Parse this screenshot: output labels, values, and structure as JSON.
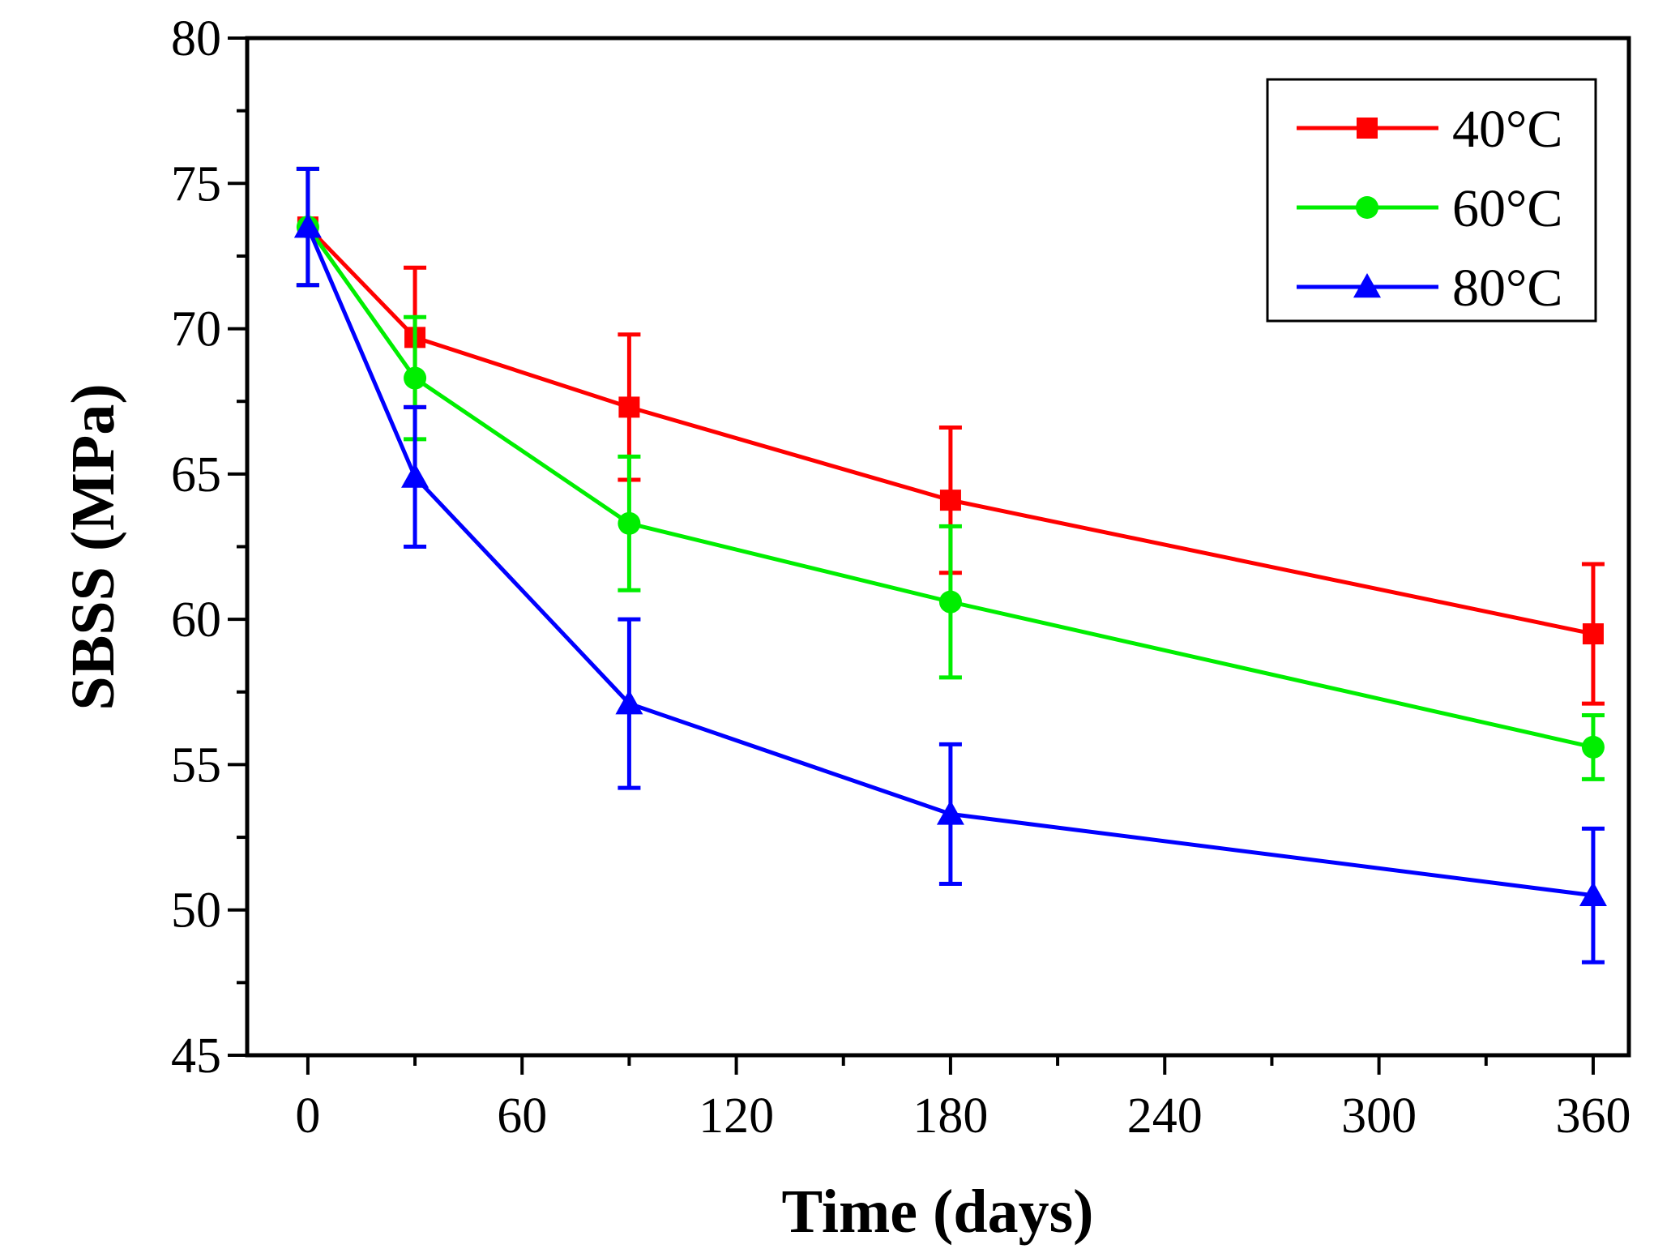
{
  "chart_data": {
    "type": "line",
    "xlabel": "Time (days)",
    "ylabel": "SBSS (MPa)",
    "xlim": [
      -17,
      370
    ],
    "ylim": [
      45,
      80
    ],
    "x_ticks": [
      0,
      60,
      120,
      180,
      240,
      300,
      360
    ],
    "y_ticks": [
      45,
      50,
      55,
      60,
      65,
      70,
      75,
      80
    ],
    "x_minor_step": 30,
    "y_minor_step": 2.5,
    "grid": false,
    "legend_position": "top-right",
    "series": [
      {
        "name": "40°C",
        "color": "#ff0000",
        "marker": "square",
        "x": [
          0,
          30,
          90,
          180,
          360
        ],
        "y": [
          73.5,
          69.7,
          67.3,
          64.1,
          59.5
        ],
        "error": [
          2.0,
          2.4,
          2.5,
          2.5,
          2.4
        ]
      },
      {
        "name": "60°C",
        "color": "#00ee00",
        "marker": "circle",
        "x": [
          0,
          30,
          90,
          180,
          360
        ],
        "y": [
          73.5,
          68.3,
          63.3,
          60.6,
          55.6
        ],
        "error": [
          2.0,
          2.1,
          2.3,
          2.6,
          1.1
        ]
      },
      {
        "name": "80°C",
        "color": "#0000ff",
        "marker": "triangle",
        "x": [
          0,
          30,
          90,
          180,
          360
        ],
        "y": [
          73.5,
          64.9,
          57.1,
          53.3,
          50.5
        ],
        "error": [
          2.0,
          2.4,
          2.9,
          2.4,
          2.3
        ]
      }
    ]
  }
}
